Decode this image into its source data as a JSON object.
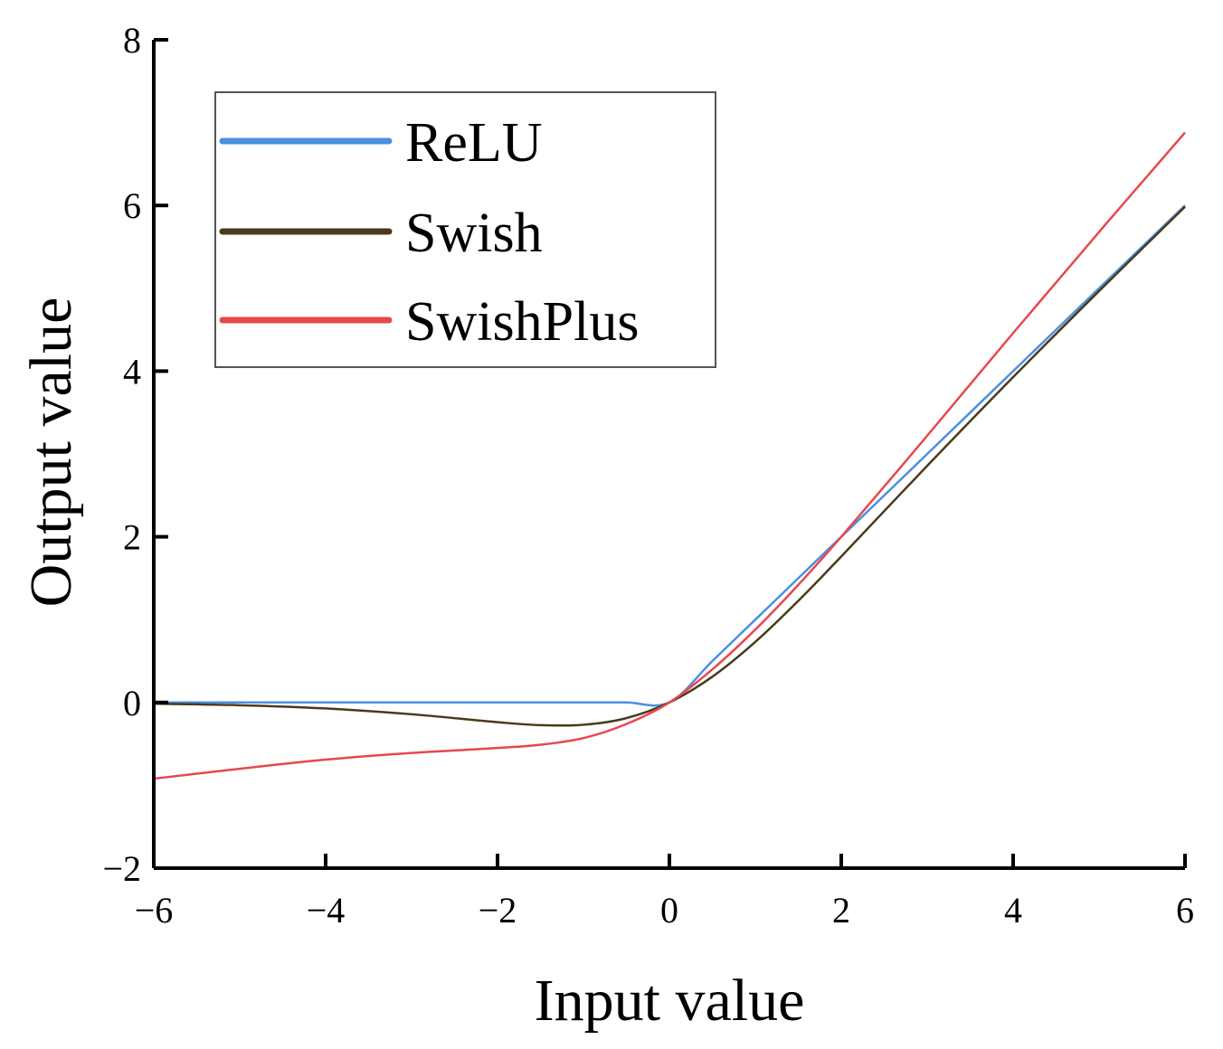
{
  "chart_data": {
    "type": "line",
    "xlabel": "Input value",
    "ylabel": "Output value",
    "xlim": [
      -6,
      6
    ],
    "ylim": [
      -2,
      8
    ],
    "xticks": [
      -6,
      -4,
      -2,
      0,
      2,
      4,
      6
    ],
    "yticks": [
      -2,
      0,
      2,
      4,
      6,
      8
    ],
    "xtick_labels": [
      "−6",
      "−4",
      "−2",
      "0",
      "2",
      "4",
      "6"
    ],
    "ytick_labels": [
      "−2",
      "0",
      "2",
      "4",
      "6",
      "8"
    ],
    "grid": false,
    "legend_position": "top-left",
    "x": [
      -6,
      -5,
      -4,
      -3,
      -2,
      -1.5,
      -1,
      -0.5,
      0,
      0.5,
      1,
      1.5,
      2,
      3,
      4,
      5,
      6
    ],
    "series": [
      {
        "name": "ReLU",
        "color": "#4a90e2",
        "values": [
          0,
          0,
          0,
          0,
          0,
          0,
          0,
          0,
          0,
          0.5,
          1,
          1.5,
          2,
          3,
          4,
          5,
          6
        ]
      },
      {
        "name": "Swish",
        "color": "#4a3a1a",
        "values": [
          -0.015,
          -0.033,
          -0.072,
          -0.142,
          -0.238,
          -0.274,
          -0.269,
          -0.189,
          0,
          0.311,
          0.731,
          1.227,
          1.762,
          2.857,
          3.928,
          4.967,
          5.985
        ]
      },
      {
        "name": "SwishPlus",
        "color": "#e8474e",
        "values": [
          -0.92,
          -0.8,
          -0.69,
          -0.61,
          -0.55,
          -0.51,
          -0.43,
          -0.26,
          0,
          0.4,
          0.88,
          1.42,
          2.0,
          3.22,
          4.46,
          5.68,
          6.88
        ]
      }
    ]
  }
}
